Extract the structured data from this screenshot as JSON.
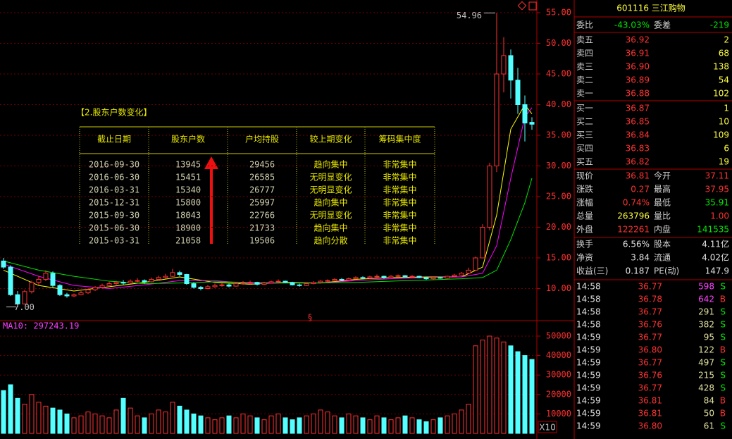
{
  "chart_data": [
    {
      "type": "candlestick",
      "ylim": [
        4.77,
        57.07
      ],
      "yticks": [
        {
          "value": 10,
          "label": "10.00"
        },
        {
          "value": 15,
          "label": "15.00"
        },
        {
          "value": 20,
          "label": "20.00"
        },
        {
          "value": 25,
          "label": "25.00"
        },
        {
          "value": 30,
          "label": "30.00"
        },
        {
          "value": 35,
          "label": "35.00"
        },
        {
          "value": 40,
          "label": "40.00"
        },
        {
          "value": 45,
          "label": "45.00"
        },
        {
          "value": 50,
          "label": "50.00"
        },
        {
          "value": 55,
          "label": "55.00"
        }
      ],
      "grid": true,
      "up_color": "#ff3232",
      "down_color": "#54ffff",
      "candles": [
        [
          14.5,
          15.0,
          13.2,
          13.5
        ],
        [
          13.5,
          13.8,
          8.8,
          9.0
        ],
        [
          9.0,
          9.6,
          7.0,
          7.5
        ],
        [
          7.5,
          9.8,
          7.4,
          9.5
        ],
        [
          9.5,
          11.3,
          9.2,
          11.0
        ],
        [
          11.0,
          12.0,
          10.6,
          11.5
        ],
        [
          11.5,
          13.0,
          11.2,
          12.5
        ],
        [
          12.5,
          12.8,
          10.2,
          10.5
        ],
        [
          10.5,
          10.7,
          8.8,
          9.0
        ],
        [
          9.0,
          9.3,
          8.5,
          8.8
        ],
        [
          8.8,
          9.2,
          8.6,
          9.0
        ],
        [
          9.0,
          9.6,
          8.9,
          9.3
        ],
        [
          9.3,
          10.0,
          9.1,
          9.8
        ],
        [
          9.8,
          10.4,
          9.6,
          10.2
        ],
        [
          10.2,
          10.8,
          10.0,
          10.5
        ],
        [
          10.5,
          11.1,
          10.3,
          10.8
        ],
        [
          10.8,
          11.3,
          10.6,
          11.0
        ],
        [
          11.0,
          11.4,
          10.6,
          10.9
        ],
        [
          10.9,
          11.5,
          10.8,
          11.2
        ],
        [
          11.2,
          11.7,
          11.0,
          11.3
        ],
        [
          11.3,
          11.5,
          10.8,
          11.1
        ],
        [
          11.1,
          11.8,
          11.0,
          11.5
        ],
        [
          11.5,
          12.1,
          11.3,
          11.8
        ],
        [
          11.8,
          12.4,
          11.6,
          12.0
        ],
        [
          12.0,
          13.2,
          11.9,
          12.6
        ],
        [
          12.6,
          12.9,
          12.0,
          12.3
        ],
        [
          12.3,
          12.4,
          10.6,
          10.8
        ],
        [
          10.8,
          11.0,
          10.0,
          10.2
        ],
        [
          10.2,
          10.4,
          9.7,
          10.0
        ],
        [
          10.0,
          10.6,
          9.9,
          10.3
        ],
        [
          10.3,
          10.8,
          10.1,
          10.5
        ],
        [
          10.5,
          10.9,
          10.3,
          10.6
        ],
        [
          10.6,
          10.8,
          10.2,
          10.4
        ],
        [
          10.4,
          11.0,
          10.3,
          10.8
        ],
        [
          10.8,
          11.2,
          10.6,
          10.9
        ],
        [
          10.9,
          11.3,
          10.7,
          11.0
        ],
        [
          11.0,
          11.1,
          10.5,
          10.7
        ],
        [
          10.7,
          11.1,
          10.6,
          10.9
        ],
        [
          10.9,
          11.3,
          10.8,
          11.1
        ],
        [
          11.1,
          11.5,
          11.0,
          11.2
        ],
        [
          11.2,
          11.3,
          10.9,
          11.0
        ],
        [
          11.0,
          11.1,
          10.5,
          10.6
        ],
        [
          10.6,
          10.8,
          10.3,
          10.5
        ],
        [
          10.5,
          11.0,
          10.4,
          10.8
        ],
        [
          10.8,
          11.2,
          10.7,
          11.0
        ],
        [
          11.0,
          11.4,
          10.9,
          11.2
        ],
        [
          11.2,
          11.5,
          11.0,
          11.3
        ],
        [
          11.3,
          11.7,
          11.2,
          11.5
        ],
        [
          11.5,
          11.7,
          11.2,
          11.4
        ],
        [
          11.4,
          11.8,
          11.3,
          11.6
        ],
        [
          11.6,
          12.0,
          11.5,
          11.8
        ],
        [
          11.8,
          12.0,
          11.5,
          11.7
        ],
        [
          11.7,
          12.1,
          11.6,
          11.9
        ],
        [
          11.9,
          12.3,
          11.8,
          12.0
        ],
        [
          12.0,
          12.1,
          11.6,
          11.8
        ],
        [
          11.8,
          12.2,
          11.7,
          12.0
        ],
        [
          12.0,
          12.3,
          11.9,
          12.1
        ],
        [
          12.1,
          12.2,
          11.8,
          11.9
        ],
        [
          11.9,
          12.2,
          11.8,
          12.0
        ],
        [
          12.0,
          12.1,
          11.7,
          11.8
        ],
        [
          11.8,
          11.9,
          11.4,
          11.6
        ],
        [
          11.6,
          11.9,
          11.5,
          11.8
        ],
        [
          11.8,
          11.9,
          11.6,
          11.7
        ],
        [
          11.7,
          12.1,
          11.6,
          12.0
        ],
        [
          12.0,
          12.4,
          11.9,
          12.2
        ],
        [
          12.2,
          12.7,
          12.1,
          12.5
        ],
        [
          12.5,
          13.4,
          12.4,
          13.0
        ],
        [
          13.0,
          15.2,
          12.9,
          15.0
        ],
        [
          15.0,
          20.5,
          15.0,
          20.0
        ],
        [
          20.0,
          30.5,
          19.5,
          30.0
        ],
        [
          30.0,
          54.96,
          29.0,
          45.0
        ],
        [
          45.0,
          51.0,
          42.0,
          48.0
        ],
        [
          48.0,
          49.0,
          41.0,
          44.0
        ],
        [
          44.0,
          46.0,
          38.5,
          40.0
        ],
        [
          40.0,
          41.5,
          34.0,
          37.0
        ],
        [
          37.11,
          37.95,
          35.91,
          36.81
        ]
      ],
      "lines": [
        {
          "color": "#ffff00",
          "x": [
            0,
            5,
            10,
            15,
            20,
            25,
            30,
            35,
            40,
            45,
            50,
            55,
            60,
            65,
            68,
            70,
            72,
            74,
            75
          ],
          "values": [
            13,
            10.5,
            9.6,
            10.3,
            11.0,
            11.9,
            11.0,
            10.7,
            11.0,
            10.9,
            11.5,
            11.8,
            11.9,
            11.9,
            13.5,
            22,
            36,
            40,
            38.5
          ]
        },
        {
          "color": "#ff00ff",
          "x": [
            0,
            5,
            10,
            15,
            20,
            25,
            30,
            35,
            40,
            45,
            50,
            55,
            60,
            65,
            68,
            70,
            72,
            74,
            75
          ],
          "values": [
            14,
            12,
            10.5,
            10.0,
            10.6,
            11.3,
            11.3,
            10.8,
            10.9,
            10.9,
            11.3,
            11.6,
            11.8,
            11.9,
            12.5,
            17,
            28,
            38,
            39.5
          ]
        },
        {
          "color": "#00e600",
          "x": [
            0,
            5,
            10,
            15,
            20,
            25,
            30,
            35,
            40,
            45,
            50,
            55,
            60,
            65,
            68,
            70,
            72,
            74,
            75
          ],
          "values": [
            14.5,
            13,
            12,
            11.2,
            10.8,
            10.9,
            11.1,
            11.0,
            10.9,
            10.9,
            11.0,
            11.2,
            11.4,
            11.6,
            11.8,
            13,
            18,
            24,
            28
          ]
        }
      ],
      "annotations": [
        {
          "x": 70,
          "value": 54.96,
          "label": "54.96"
        },
        {
          "x": 2,
          "value": 7.0,
          "label": "7.00"
        }
      ],
      "symbol": "§"
    },
    {
      "type": "bar",
      "label": "MA10: 297243.19",
      "unit_label": "X10",
      "ylim": [
        0,
        57600
      ],
      "yticks": [
        10000,
        20000,
        30000,
        40000,
        50000
      ],
      "grid": true,
      "values": [
        22000,
        25000,
        18000,
        15000,
        20000,
        16000,
        14000,
        13000,
        12000,
        10000,
        8000,
        9000,
        11000,
        10000,
        9000,
        8000,
        12000,
        18000,
        13000,
        9000,
        8000,
        10000,
        12000,
        11000,
        16000,
        14000,
        12000,
        10000,
        9000,
        8000,
        7000,
        8000,
        9000,
        8000,
        10000,
        9000,
        8000,
        7000,
        9000,
        10000,
        8000,
        7000,
        8000,
        9000,
        10000,
        12000,
        11000,
        9000,
        8000,
        10000,
        9000,
        8000,
        7000,
        9000,
        8000,
        7000,
        8000,
        9000,
        8000,
        7000,
        6000,
        7000,
        8000,
        9000,
        10000,
        12000,
        15000,
        45000,
        48000,
        50000,
        49000,
        47000,
        45000,
        42000,
        40000,
        38000
      ]
    }
  ],
  "table": {
    "title": "【2.股东户数变化】",
    "header": [
      "截止日期",
      "股东户数",
      "户均持股",
      "较上期变化",
      "筹码集中度"
    ],
    "rows": [
      [
        "2016-09-30",
        "13945",
        "29456",
        "趋向集中",
        "非常集中"
      ],
      [
        "2016-06-30",
        "15451",
        "26585",
        "无明显变化",
        "非常集中"
      ],
      [
        "2016-03-31",
        "15340",
        "26777",
        "无明显变化",
        "非常集中"
      ],
      [
        "2015-12-31",
        "15800",
        "25997",
        "趋向集中",
        "非常集中"
      ],
      [
        "2015-09-30",
        "18043",
        "22766",
        "无明显变化",
        "非常集中"
      ],
      [
        "2015-06-30",
        "18900",
        "21733",
        "趋向集中",
        "非常集中"
      ],
      [
        "2015-03-31",
        "21058",
        "19506",
        "趋向分散",
        "非常集中"
      ]
    ]
  },
  "quote": {
    "title": "601116 三江购物",
    "ratio": [
      "委比",
      "-43.03%",
      "委差",
      "-219"
    ],
    "asks": [
      [
        "卖五",
        "36.92",
        "2"
      ],
      [
        "卖四",
        "36.91",
        "68"
      ],
      [
        "卖三",
        "36.90",
        "138"
      ],
      [
        "卖二",
        "36.89",
        "54"
      ],
      [
        "卖一",
        "36.88",
        "102"
      ]
    ],
    "bids": [
      [
        "买一",
        "36.87",
        "1"
      ],
      [
        "买二",
        "36.85",
        "10"
      ],
      [
        "买三",
        "36.84",
        "109"
      ],
      [
        "买四",
        "36.83",
        "6"
      ],
      [
        "买五",
        "36.82",
        "19"
      ]
    ],
    "stats": [
      [
        "现价",
        "36.81",
        "今开",
        "37.11"
      ],
      [
        "涨跌",
        "0.27",
        "最高",
        "37.95"
      ],
      [
        "涨幅",
        "0.74%",
        "最低",
        "35.91"
      ],
      [
        "总量",
        "263796",
        "量比",
        "1.00"
      ],
      [
        "外盘",
        "122261",
        "内盘",
        "141535"
      ]
    ],
    "finance": [
      [
        "换手",
        "6.56%",
        "股本",
        "4.11亿"
      ],
      [
        "净资",
        "3.84",
        "流通",
        "4.02亿"
      ],
      [
        "收益(三)",
        "0.187",
        "PE(动)",
        "147.9"
      ]
    ],
    "ticks": [
      [
        "14:58",
        "36.77",
        "598",
        "S"
      ],
      [
        "14:58",
        "36.78",
        "642",
        "B"
      ],
      [
        "14:58",
        "36.77",
        "291",
        "S"
      ],
      [
        "14:58",
        "36.76",
        "382",
        "S"
      ],
      [
        "14:59",
        "36.77",
        "95",
        "S"
      ],
      [
        "14:59",
        "36.80",
        "122",
        "B"
      ],
      [
        "14:59",
        "36.77",
        "497",
        "S"
      ],
      [
        "14:59",
        "36.76",
        "215",
        "S"
      ],
      [
        "14:59",
        "36.77",
        "428",
        "S"
      ],
      [
        "14:59",
        "36.81",
        "84",
        "B"
      ],
      [
        "14:59",
        "36.81",
        "50",
        "B"
      ],
      [
        "14:59",
        "36.80",
        "61",
        "S"
      ]
    ]
  }
}
